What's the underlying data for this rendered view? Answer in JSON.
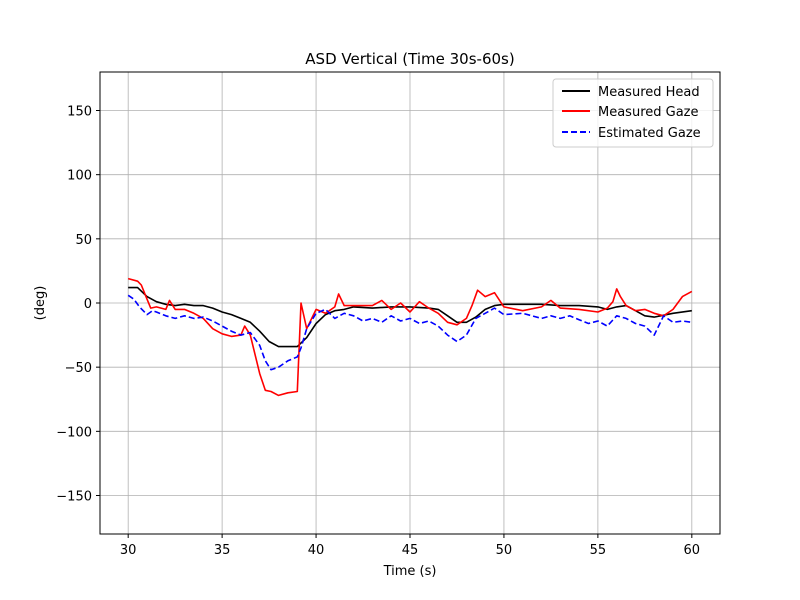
{
  "chart_data": {
    "type": "line",
    "title": "ASD Vertical (Time 30s-60s)",
    "xlabel": "Time (s)",
    "ylabel": "(deg)",
    "xlim": [
      28.5,
      61.5
    ],
    "ylim": [
      -180,
      180
    ],
    "xticks": [
      30,
      35,
      40,
      45,
      50,
      55,
      60
    ],
    "yticks": [
      150,
      100,
      50,
      0,
      -50,
      -100,
      -150
    ],
    "ytick_labels": [
      "150",
      "100",
      "50",
      "0",
      "−50",
      "−100",
      "−150"
    ],
    "grid": true,
    "legend_position": "top-right",
    "series": [
      {
        "name": "Measured Head",
        "color": "#000000",
        "style": "solid",
        "x": [
          30,
          30.5,
          31,
          31.5,
          32,
          32.5,
          33,
          33.5,
          34,
          34.5,
          35,
          35.5,
          36,
          36.5,
          37,
          37.5,
          38,
          38.5,
          39,
          39.5,
          40,
          40.5,
          41,
          41.5,
          42,
          43,
          44,
          45,
          46,
          46.5,
          47,
          47.5,
          48,
          48.5,
          49,
          49.5,
          50,
          51,
          52,
          53,
          54,
          55,
          55.5,
          56,
          56.5,
          57,
          57.5,
          58,
          59,
          60
        ],
        "y": [
          12,
          12,
          5,
          1,
          -1,
          -2,
          -1,
          -2,
          -2,
          -4,
          -7,
          -9,
          -12,
          -15,
          -22,
          -30,
          -34,
          -34,
          -34,
          -27,
          -16,
          -9,
          -6,
          -5,
          -3,
          -4,
          -3,
          -3,
          -4,
          -5,
          -10,
          -15,
          -15,
          -11,
          -5,
          -2,
          -1,
          -1,
          -1,
          -2,
          -2,
          -3,
          -5,
          -3,
          -2,
          -6,
          -10,
          -11,
          -8,
          -6
        ]
      },
      {
        "name": "Measured Gaze",
        "color": "#ff0000",
        "style": "solid",
        "x": [
          30,
          30.5,
          30.7,
          31,
          31.2,
          31.5,
          32,
          32.2,
          32.5,
          33,
          33.5,
          34,
          34.5,
          35,
          35.5,
          36,
          36.2,
          36.5,
          37,
          37.3,
          37.6,
          38,
          38.5,
          39,
          39.2,
          39.5,
          40,
          40.5,
          41,
          41.2,
          41.5,
          42,
          43,
          43.5,
          44,
          44.5,
          45,
          45.5,
          46,
          46.5,
          47,
          47.5,
          48,
          48.3,
          48.6,
          49,
          49.5,
          50,
          51,
          52,
          52.5,
          53,
          54,
          55,
          55.5,
          55.8,
          56,
          56.2,
          56.5,
          57,
          57.5,
          58,
          58.5,
          59,
          59.5,
          60
        ],
        "y": [
          19,
          17,
          14,
          3,
          -4,
          -3,
          -5,
          2,
          -5,
          -5,
          -8,
          -12,
          -20,
          -24,
          -26,
          -25,
          -18,
          -25,
          -55,
          -68,
          -69,
          -72,
          -70,
          -69,
          0,
          -20,
          -5,
          -8,
          -3,
          7,
          -2,
          -2,
          -2,
          2,
          -5,
          0,
          -7,
          1,
          -4,
          -8,
          -15,
          -17,
          -12,
          -2,
          10,
          5,
          8,
          -3,
          -6,
          -3,
          2,
          -4,
          -5,
          -7,
          -4,
          1,
          11,
          5,
          -2,
          -6,
          -5,
          -8,
          -10,
          -5,
          5,
          9
        ]
      },
      {
        "name": "Estimated Gaze",
        "color": "#0000ff",
        "style": "dashed",
        "x": [
          30,
          30.3,
          30.6,
          31,
          31.3,
          31.5,
          32,
          32.5,
          33,
          33.5,
          34,
          34.5,
          35,
          35.5,
          36,
          36.5,
          37,
          37.3,
          37.6,
          38,
          38.5,
          39,
          39.2,
          39.5,
          40,
          40.5,
          41,
          41.5,
          42,
          42.5,
          43,
          43.5,
          44,
          44.5,
          45,
          45.5,
          46,
          46.5,
          47,
          47.5,
          48,
          48.5,
          49,
          49.5,
          50,
          51,
          52,
          52.5,
          53,
          53.5,
          54,
          54.5,
          55,
          55.5,
          56,
          56.5,
          57,
          57.5,
          58,
          58.5,
          59,
          59.5,
          60
        ],
        "y": [
          6,
          3,
          -3,
          -9,
          -6,
          -7,
          -10,
          -12,
          -10,
          -12,
          -11,
          -14,
          -18,
          -22,
          -25,
          -23,
          -33,
          -45,
          -52,
          -50,
          -45,
          -42,
          -35,
          -20,
          -8,
          -5,
          -12,
          -8,
          -10,
          -14,
          -12,
          -15,
          -10,
          -14,
          -12,
          -16,
          -14,
          -18,
          -25,
          -30,
          -25,
          -12,
          -8,
          -4,
          -9,
          -8,
          -12,
          -10,
          -12,
          -10,
          -13,
          -16,
          -14,
          -18,
          -10,
          -12,
          -16,
          -18,
          -25,
          -10,
          -15,
          -14,
          -15
        ]
      }
    ]
  }
}
